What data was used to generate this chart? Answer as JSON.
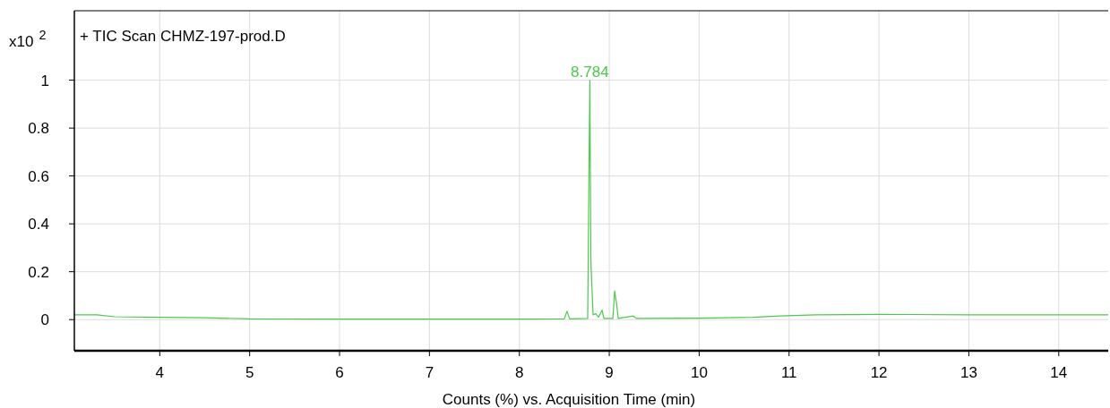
{
  "chart_data": {
    "type": "line",
    "title": "+ TIC Scan CHMZ-197-prod.D",
    "xlabel": "Counts (%) vs. Acquisition Time (min)",
    "ylabel": "x10$^{2}$",
    "series": [
      {
        "color": "#4cc94c",
        "x": [
          3.05,
          3.3,
          3.5,
          4.0,
          4.5,
          5.0,
          6.0,
          7.0,
          8.0,
          8.5,
          8.53,
          8.56,
          8.76,
          8.784,
          8.795,
          8.8,
          8.82,
          8.85,
          8.88,
          8.92,
          8.94,
          9.04,
          9.06,
          9.08,
          9.1,
          9.27,
          9.3,
          10.0,
          10.6,
          10.9,
          11.3,
          12.0,
          13.0,
          14.0,
          14.55
        ],
        "values": [
          0.02,
          0.02,
          0.012,
          0.01,
          0.008,
          0.003,
          0.002,
          0.002,
          0.002,
          0.003,
          0.035,
          0.003,
          0.005,
          1.0,
          0.26,
          0.2,
          0.02,
          0.025,
          0.01,
          0.04,
          0.005,
          0.005,
          0.12,
          0.07,
          0.005,
          0.015,
          0.005,
          0.006,
          0.01,
          0.015,
          0.02,
          0.022,
          0.02,
          0.02,
          0.02
        ]
      }
    ],
    "xlim": [
      3.05,
      14.55
    ],
    "ylim": [
      -0.13,
      1.29
    ],
    "xticks": [
      4,
      5,
      6,
      7,
      8,
      9,
      10,
      11,
      12,
      13,
      14
    ],
    "yticks": [
      0,
      0.2,
      0.4,
      0.6,
      0.8,
      1
    ],
    "grid": true,
    "line_style": "solid",
    "marker": "none",
    "annotations": [
      {
        "text": "8.784",
        "x": 8.784,
        "y": 1
      }
    ]
  }
}
